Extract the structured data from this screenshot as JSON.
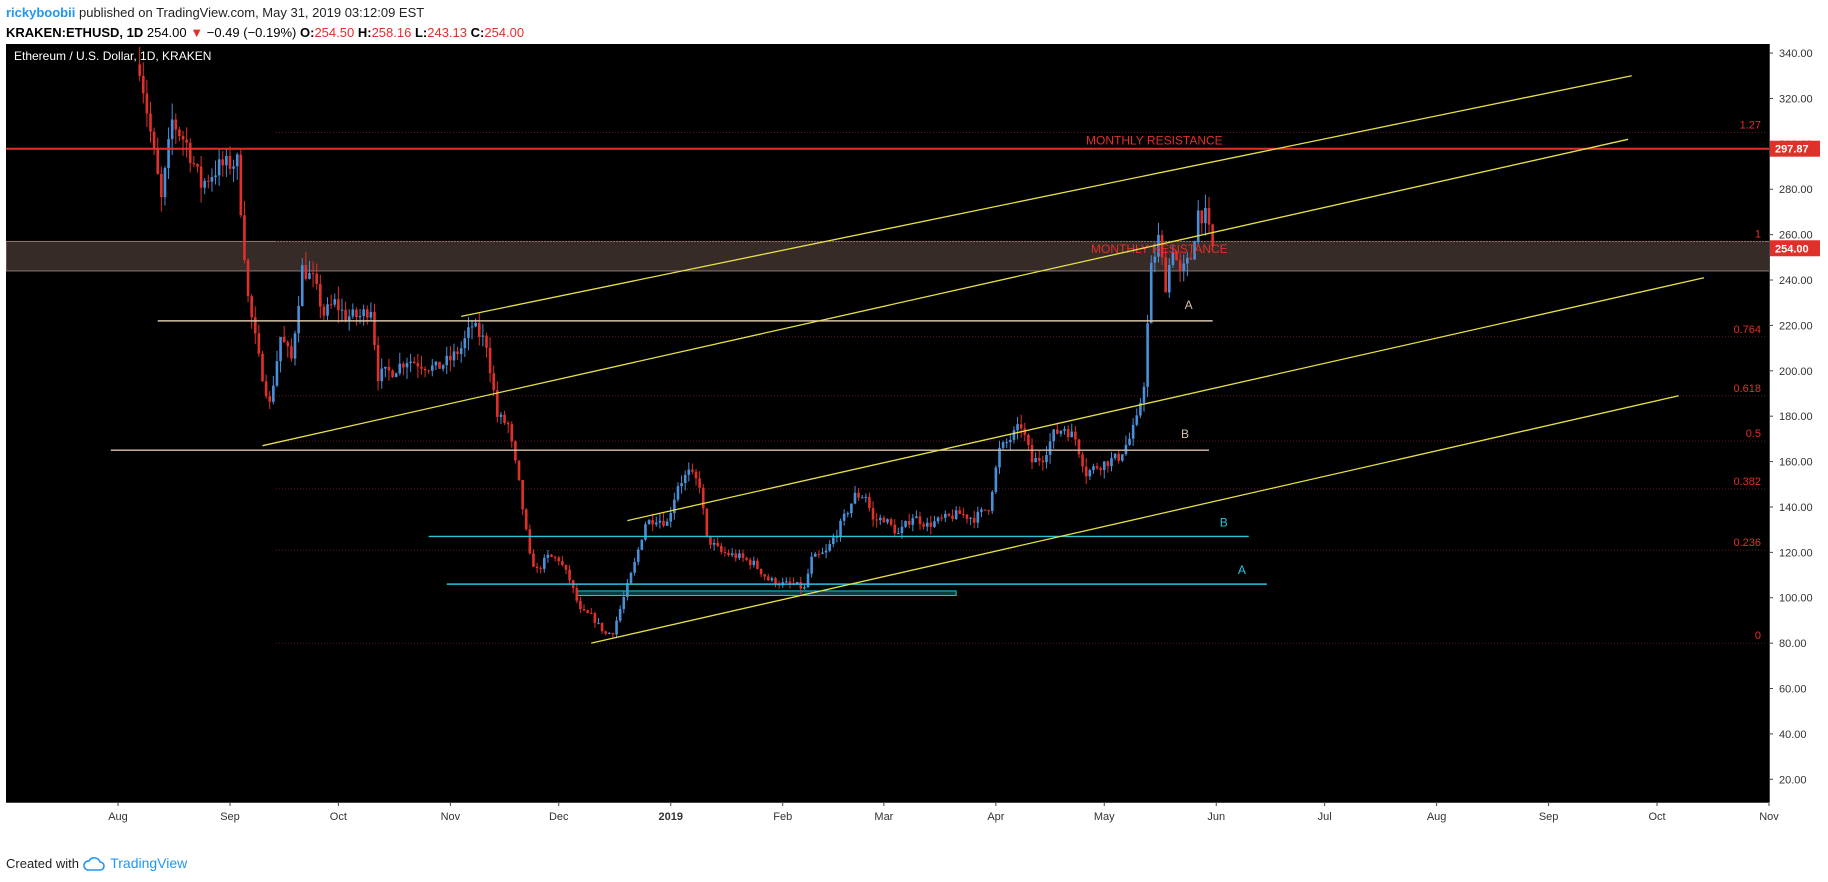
{
  "header": {
    "author": "rickyboobii",
    "published_text": "published on TradingView.com, May 31, 2019 03:12:09 EST",
    "symbol": "KRAKEN:ETHUSD, 1D",
    "price": "254.00",
    "change_arrow": "▼",
    "change": "−0.49 (−0.19%)",
    "o_label": "O:",
    "o_value": "254.50",
    "h_label": "H:",
    "h_value": "258.16",
    "l_label": "L:",
    "l_value": "243.13",
    "c_label": "C:",
    "c_value": "254.00"
  },
  "footer": {
    "created_with": "Created with",
    "brand": "TradingView",
    "brand_icon": "tradingview-cloud-icon"
  },
  "colors": {
    "background": "#000000",
    "up_candle": "#4a90d9",
    "down_candle": "#e0302a",
    "channel": "#e6e04a",
    "support": "#d8c2a8",
    "cyan": "#26c6da",
    "resistance": "#e0302a",
    "fib_text": "#e0302a",
    "zone": "#4a3a34"
  },
  "chart_data": {
    "type": "candlestick",
    "title": "Ethereum / U.S. Dollar, 1D, KRAKEN",
    "x_ticks": [
      "Aug",
      "Sep",
      "Oct",
      "Nov",
      "Dec",
      "2019",
      "Feb",
      "Mar",
      "Apr",
      "May",
      "Jun",
      "Jul",
      "Aug",
      "Sep",
      "Oct",
      "Nov"
    ],
    "y_ticks": [
      "340.00",
      "320.00",
      "300.00",
      "280.00",
      "260.00",
      "240.00",
      "220.00",
      "200.00",
      "180.00",
      "160.00",
      "140.00",
      "120.00",
      "100.00",
      "80.00",
      "60.00",
      "40.00",
      "20.00"
    ],
    "y_range": [
      10,
      344
    ],
    "last_price": 254.0,
    "last_price_label": "254.00",
    "resistance_price": 297.87,
    "resistance_price_label": "297.87",
    "price_path": [
      [
        "2018-08-07",
        335
      ],
      [
        "2018-08-09",
        315
      ],
      [
        "2018-08-13",
        275
      ],
      [
        "2018-08-16",
        310
      ],
      [
        "2018-08-20",
        300
      ],
      [
        "2018-08-24",
        282
      ],
      [
        "2018-08-29",
        290
      ],
      [
        "2018-09-03",
        292
      ],
      [
        "2018-09-06",
        232
      ],
      [
        "2018-09-09",
        205
      ],
      [
        "2018-09-12",
        185
      ],
      [
        "2018-09-15",
        215
      ],
      [
        "2018-09-18",
        205
      ],
      [
        "2018-09-21",
        245
      ],
      [
        "2018-09-24",
        240
      ],
      [
        "2018-09-27",
        225
      ],
      [
        "2018-09-30",
        230
      ],
      [
        "2018-10-03",
        224
      ],
      [
        "2018-10-07",
        224
      ],
      [
        "2018-10-10",
        228
      ],
      [
        "2018-10-12",
        198
      ],
      [
        "2018-10-16",
        200
      ],
      [
        "2018-10-20",
        205
      ],
      [
        "2018-10-24",
        203
      ],
      [
        "2018-10-28",
        201
      ],
      [
        "2018-11-01",
        205
      ],
      [
        "2018-11-04",
        210
      ],
      [
        "2018-11-07",
        220
      ],
      [
        "2018-11-11",
        212
      ],
      [
        "2018-11-14",
        180
      ],
      [
        "2018-11-17",
        176
      ],
      [
        "2018-11-20",
        150
      ],
      [
        "2018-11-23",
        118
      ],
      [
        "2018-11-25",
        112
      ],
      [
        "2018-11-28",
        118
      ],
      [
        "2018-12-01",
        117
      ],
      [
        "2018-12-04",
        108
      ],
      [
        "2018-12-07",
        94
      ],
      [
        "2018-12-10",
        92
      ],
      [
        "2018-12-14",
        84
      ],
      [
        "2018-12-16",
        85
      ],
      [
        "2018-12-19",
        100
      ],
      [
        "2018-12-22",
        115
      ],
      [
        "2018-12-25",
        133
      ],
      [
        "2018-12-28",
        135
      ],
      [
        "2018-12-31",
        133
      ],
      [
        "2019-01-03",
        150
      ],
      [
        "2019-01-06",
        155
      ],
      [
        "2019-01-09",
        150
      ],
      [
        "2019-01-11",
        126
      ],
      [
        "2019-01-15",
        120
      ],
      [
        "2019-01-20",
        118
      ],
      [
        "2019-01-24",
        115
      ],
      [
        "2019-01-28",
        108
      ],
      [
        "2019-02-01",
        106
      ],
      [
        "2019-02-04",
        106
      ],
      [
        "2019-02-07",
        104
      ],
      [
        "2019-02-09",
        117
      ],
      [
        "2019-02-13",
        120
      ],
      [
        "2019-02-17",
        132
      ],
      [
        "2019-02-21",
        145
      ],
      [
        "2019-02-24",
        145
      ],
      [
        "2019-02-26",
        134
      ],
      [
        "2019-03-01",
        135
      ],
      [
        "2019-03-05",
        128
      ],
      [
        "2019-03-09",
        136
      ],
      [
        "2019-03-13",
        132
      ],
      [
        "2019-03-18",
        135
      ],
      [
        "2019-03-22",
        137
      ],
      [
        "2019-03-26",
        135
      ],
      [
        "2019-03-30",
        140
      ],
      [
        "2019-04-02",
        165
      ],
      [
        "2019-04-05",
        170
      ],
      [
        "2019-04-08",
        176
      ],
      [
        "2019-04-11",
        160
      ],
      [
        "2019-04-14",
        162
      ],
      [
        "2019-04-17",
        172
      ],
      [
        "2019-04-20",
        175
      ],
      [
        "2019-04-23",
        170
      ],
      [
        "2019-04-26",
        155
      ],
      [
        "2019-04-29",
        158
      ],
      [
        "2019-05-02",
        160
      ],
      [
        "2019-05-05",
        162
      ],
      [
        "2019-05-08",
        170
      ],
      [
        "2019-05-10",
        178
      ],
      [
        "2019-05-12",
        195
      ],
      [
        "2019-05-14",
        245
      ],
      [
        "2019-05-16",
        258
      ],
      [
        "2019-05-18",
        238
      ],
      [
        "2019-05-20",
        255
      ],
      [
        "2019-05-22",
        242
      ],
      [
        "2019-05-25",
        250
      ],
      [
        "2019-05-27",
        270
      ],
      [
        "2019-05-29",
        268
      ],
      [
        "2019-05-31",
        254
      ]
    ],
    "horizontal_levels": [
      {
        "label": "MONTHLY RESISTANCE",
        "price": 297.87,
        "color": "red",
        "from": "2018-07-01",
        "to": "2019-12-01"
      },
      {
        "label": "A",
        "price": 222,
        "color": "support",
        "from": "2018-08-12",
        "to": "2019-05-31"
      },
      {
        "label": "B",
        "price": 165,
        "color": "support",
        "from": "2018-07-30",
        "to": "2019-05-30"
      },
      {
        "label": "B",
        "price": 127,
        "color": "cyan",
        "from": "2018-10-26",
        "to": "2019-06-10"
      },
      {
        "label": "A",
        "price": 106,
        "color": "cyan",
        "from": "2018-10-31",
        "to": "2019-06-15"
      }
    ],
    "zones": [
      {
        "label": "MONTHLY RESISTANCE",
        "from_price": 244,
        "to_price": 257,
        "from": "2018-07-01",
        "to": "2019-12-01"
      },
      {
        "label": "",
        "from_price": 101,
        "to_price": 103,
        "from": "2018-12-06",
        "to": "2019-03-21"
      }
    ],
    "zone_label": "MONTHLY RESISTANCE",
    "channel_lines": [
      {
        "from": [
          "2018-09-10",
          167
        ],
        "to": [
          "2019-09-23",
          302
        ]
      },
      {
        "from": [
          "2018-11-04",
          224
        ],
        "to": [
          "2019-09-24",
          330
        ]
      },
      {
        "from": [
          "2018-12-20",
          134
        ],
        "to": [
          "2019-10-14",
          241
        ]
      },
      {
        "from": [
          "2018-12-10",
          80
        ],
        "to": [
          "2019-10-07",
          189
        ]
      }
    ],
    "fib_levels": [
      {
        "label": "0",
        "price": 80
      },
      {
        "label": "0.236",
        "price": 121
      },
      {
        "label": "0.382",
        "price": 148
      },
      {
        "label": "0.5",
        "price": 169
      },
      {
        "label": "0.618",
        "price": 189
      },
      {
        "label": "0.764",
        "price": 215
      },
      {
        "label": "1",
        "price": 257
      },
      {
        "label": "1.27",
        "price": 305
      }
    ]
  }
}
